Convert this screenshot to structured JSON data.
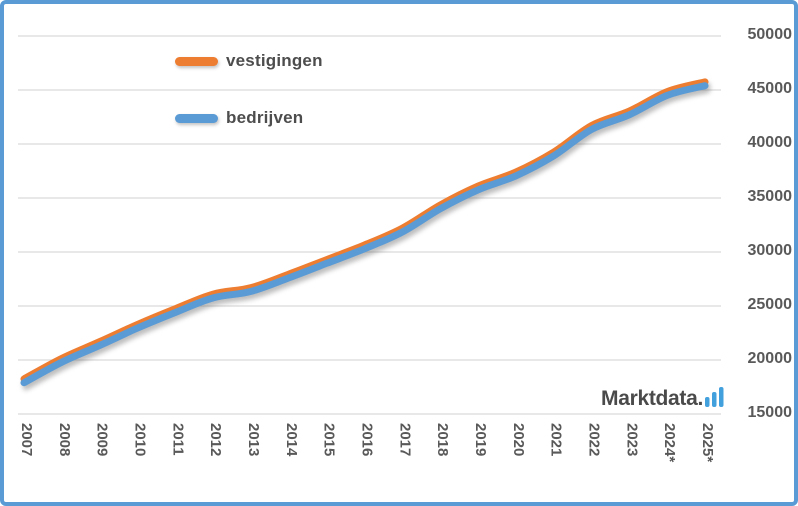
{
  "window": {
    "background": "#ffffff",
    "frame_border_color": "#5b9bd5"
  },
  "legend": {
    "items": [
      {
        "label": "vestigingen",
        "color": "#ed7d31"
      },
      {
        "label": "bedrijven",
        "color": "#5b9bd5"
      }
    ]
  },
  "logo": {
    "text": "Marktdata.",
    "text_color": "#4a4a4a",
    "bars_color": "#42a0dd",
    "bars_icon": "ascending-bar-chart-glyph"
  },
  "chart_data": {
    "type": "line",
    "title": "",
    "xlabel": "",
    "ylabel": "",
    "categories": [
      "2007",
      "2008",
      "2009",
      "2010",
      "2011",
      "2012",
      "2013",
      "2014",
      "2015",
      "2016",
      "2017",
      "2018",
      "2019",
      "2020",
      "2021",
      "2022",
      "2023",
      "2024*",
      "2025*"
    ],
    "series": [
      {
        "name": "vestigingen",
        "color": "#ed7d31",
        "values": [
          18250,
          20150,
          21700,
          23300,
          24750,
          26100,
          26700,
          27950,
          29300,
          30650,
          32200,
          34350,
          36100,
          37400,
          39250,
          41700,
          43050,
          44850,
          45750
        ]
      },
      {
        "name": "bedrijven",
        "color": "#5b9bd5",
        "values": [
          17900,
          19800,
          21350,
          22950,
          24400,
          25750,
          26350,
          27600,
          28950,
          30300,
          31850,
          34000,
          35750,
          37050,
          38900,
          41350,
          42700,
          44500,
          45400
        ]
      }
    ],
    "ylim": [
      15000,
      50000
    ],
    "y_ticks": [
      50000,
      45000,
      40000,
      35000,
      30000,
      25000,
      20000,
      15000
    ],
    "y_tick_step": 5000,
    "y_tick_labels": [
      "50000",
      "45000",
      "40000",
      "35000",
      "30000",
      "25000",
      "20000",
      "15000"
    ],
    "grid": true,
    "gridline_color": "#d9d9d9",
    "tick_label_color": "#595959",
    "legend_position": "inside-top-left",
    "line_style": "smooth-thick-shadow",
    "x_label_rotation_deg": 90
  }
}
